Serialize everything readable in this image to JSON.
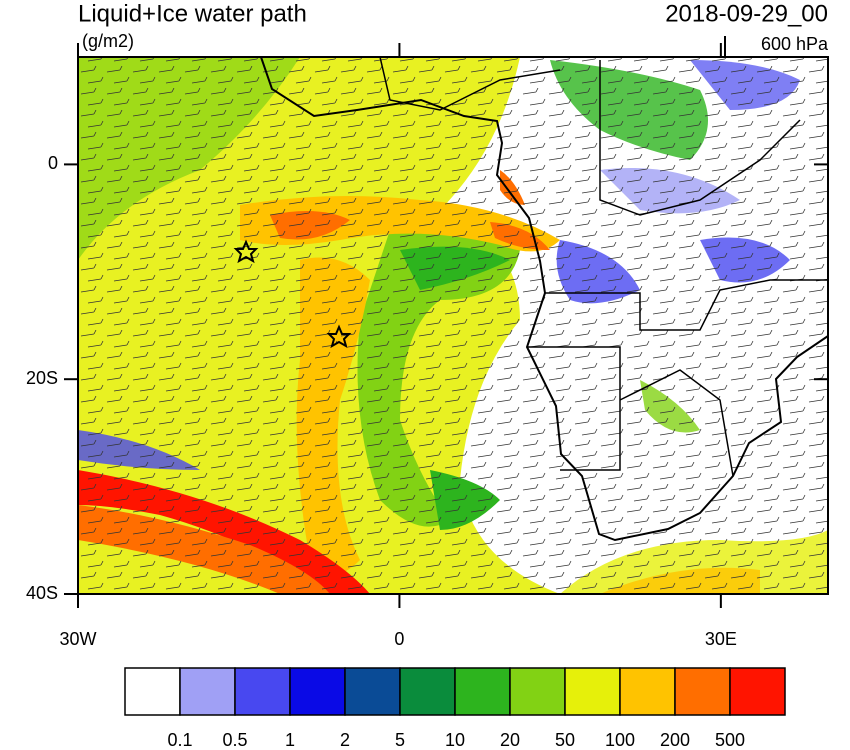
{
  "map": {
    "title": "Liquid+Ice water path",
    "units": "(g/m2)",
    "date": "2018-09-29_00",
    "level": "600 hPa",
    "xlim": [
      -30,
      40
    ],
    "ylim": [
      -40,
      10
    ],
    "lat_ticks": [
      {
        "value": 0,
        "label": "0"
      },
      {
        "value": -20,
        "label": "20S"
      },
      {
        "value": -40,
        "label": "40S"
      }
    ],
    "lon_ticks": [
      {
        "value": -30,
        "label": "30W"
      },
      {
        "value": 0,
        "label": "0"
      },
      {
        "value": 30,
        "label": "30E"
      }
    ],
    "colorbar": {
      "colors": [
        "#ffffff",
        "#a0a0f5",
        "#4848f0",
        "#0a0ae6",
        "#0a4b96",
        "#0a8c3c",
        "#2db41e",
        "#82d214",
        "#e6f00a",
        "#ffc300",
        "#ff6e00",
        "#ff1400"
      ],
      "levels": [
        0.1,
        0.5,
        1,
        2,
        5,
        10,
        20,
        50,
        100,
        200,
        500
      ]
    }
  }
}
